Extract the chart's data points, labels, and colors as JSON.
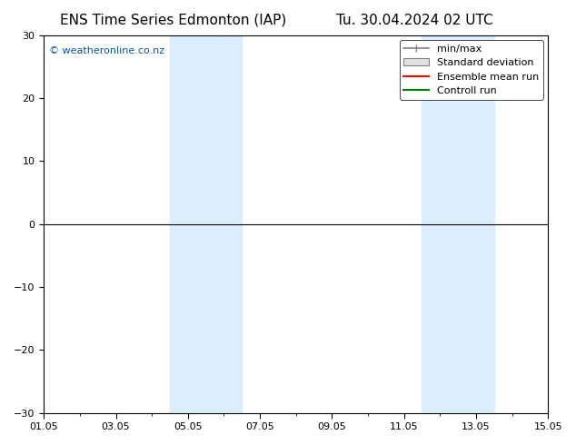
{
  "title_left": "ENS Time Series Edmonton (IAP)",
  "title_right": "Tu. 30.04.2024 02 UTC",
  "watermark": "© weatheronline.co.nz",
  "ylim": [
    -30,
    30
  ],
  "yticks": [
    -30,
    -20,
    -10,
    0,
    10,
    20,
    30
  ],
  "xlim": [
    0,
    14
  ],
  "xtick_labels": [
    "01.05",
    "03.05",
    "05.05",
    "07.05",
    "09.05",
    "11.05",
    "13.05",
    "15.05"
  ],
  "xtick_positions": [
    0,
    2,
    4,
    6,
    8,
    10,
    12,
    14
  ],
  "shaded_bands": [
    {
      "xstart": 3.5,
      "xend": 5.5
    },
    {
      "xstart": 10.5,
      "xend": 12.5
    }
  ],
  "band_color": "#daeeff",
  "zero_line_color": "#000000",
  "background_color": "#ffffff",
  "legend_items": [
    {
      "label": "min/max",
      "color": "#808080",
      "type": "hline_with_caps"
    },
    {
      "label": "Standard deviation",
      "color": "#c0c0c0",
      "type": "box"
    },
    {
      "label": "Ensemble mean run",
      "color": "#ff0000",
      "type": "line"
    },
    {
      "label": "Controll run",
      "color": "#008000",
      "type": "line"
    }
  ],
  "title_fontsize": 11,
  "tick_fontsize": 8,
  "watermark_fontsize": 8,
  "legend_fontsize": 8
}
